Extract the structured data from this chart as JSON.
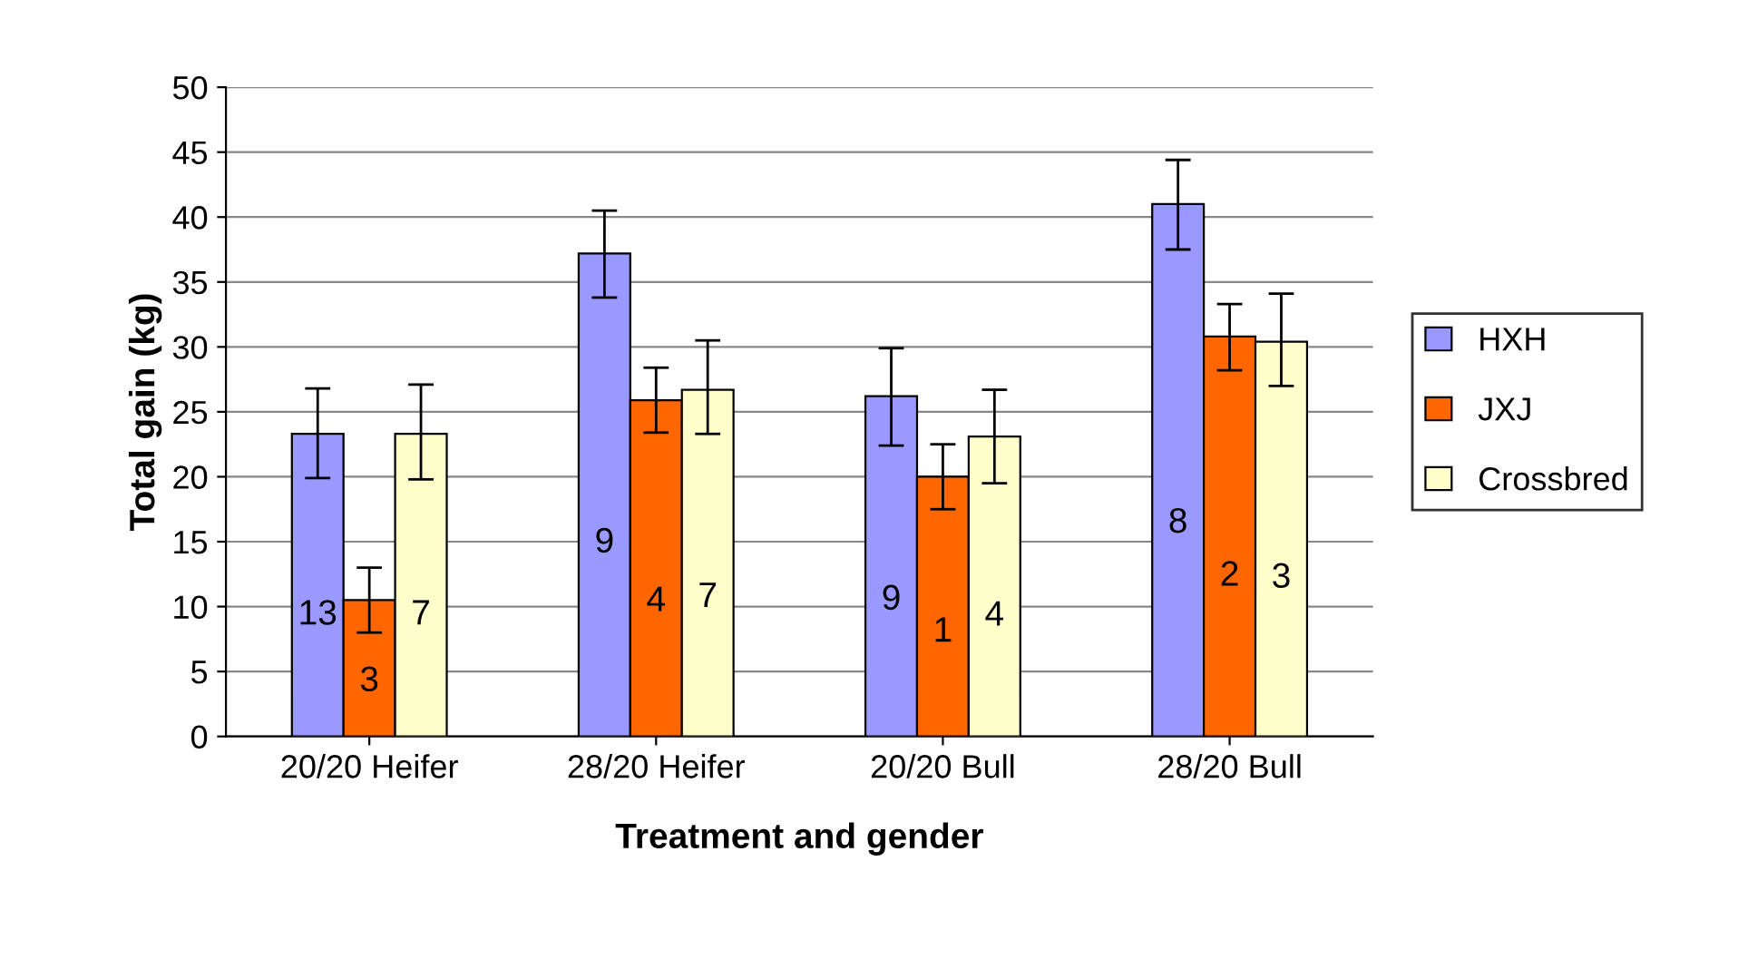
{
  "chart_data": {
    "type": "bar",
    "xlabel": "Treatment and gender",
    "ylabel": "Total gain (kg)",
    "categories": [
      "20/20 Heifer",
      "28/20 Heifer",
      "20/20 Bull",
      "28/20 Bull"
    ],
    "series": [
      {
        "name": "HXH",
        "color": "#9999ff",
        "values": [
          23.3,
          37.2,
          26.2,
          41.0
        ],
        "errors": [
          [
            19.9,
            26.8
          ],
          [
            33.8,
            40.5
          ],
          [
            22.4,
            29.9
          ],
          [
            37.5,
            44.4
          ]
        ]
      },
      {
        "name": "JXJ",
        "color": "#ff6600",
        "values": [
          10.5,
          25.9,
          20.0,
          30.8
        ],
        "errors": [
          [
            8.0,
            13.0
          ],
          [
            23.4,
            28.4
          ],
          [
            17.5,
            22.5
          ],
          [
            28.2,
            33.3
          ]
        ]
      },
      {
        "name": "Crossbred",
        "color": "#ffffcc",
        "values": [
          23.3,
          26.7,
          23.1,
          30.4
        ],
        "errors": [
          [
            19.8,
            27.1
          ],
          [
            23.3,
            30.5
          ],
          [
            19.5,
            26.7
          ],
          [
            27.0,
            34.1
          ]
        ]
      }
    ],
    "annotations": [
      "13",
      "3",
      "7",
      "9",
      "4",
      "7",
      "9",
      "1",
      "4",
      "8",
      "2",
      "3"
    ],
    "ylim": [
      0,
      50
    ],
    "yticks": [
      0,
      5,
      10,
      15,
      20,
      25,
      30,
      35,
      40,
      45,
      50
    ],
    "grid": "y",
    "legend": "right"
  }
}
